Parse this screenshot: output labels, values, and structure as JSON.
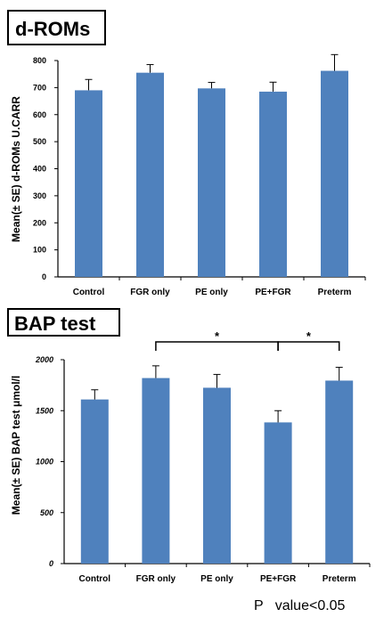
{
  "chart_data": [
    {
      "type": "bar",
      "title": "d-ROMs",
      "ylabel": "Mean(± SE)  d-ROMs  U.CARR",
      "categories": [
        "Control",
        "FGR only",
        "PE only",
        "PE+FGR",
        "Preterm"
      ],
      "values": [
        690,
        755,
        697,
        685,
        762
      ],
      "errors": [
        40,
        30,
        22,
        35,
        60
      ],
      "ylim": [
        0,
        800
      ],
      "yticks": [
        "0",
        "100",
        "200",
        "300",
        "400",
        "500",
        "600",
        "700",
        "800"
      ],
      "bar_color": "#4f81bd",
      "grid": false
    },
    {
      "type": "bar",
      "title": "BAP test",
      "ylabel": "Mean(± SE) BAP test μmol/l",
      "categories": [
        "Control",
        "FGR only",
        "PE only",
        "PE+FGR",
        "Preterm"
      ],
      "values": [
        1610,
        1820,
        1725,
        1385,
        1795
      ],
      "errors": [
        95,
        120,
        130,
        115,
        130
      ],
      "ylim": [
        0,
        2000
      ],
      "yticks": [
        "0",
        "500",
        "1000",
        "1500",
        "2000"
      ],
      "bar_color": "#4f81bd",
      "grid": false,
      "significance": [
        {
          "from": 1,
          "to": 3,
          "label": "*"
        },
        {
          "from": 3,
          "to": 4,
          "label": "*"
        }
      ]
    }
  ],
  "footnote": "P   value<0.05"
}
